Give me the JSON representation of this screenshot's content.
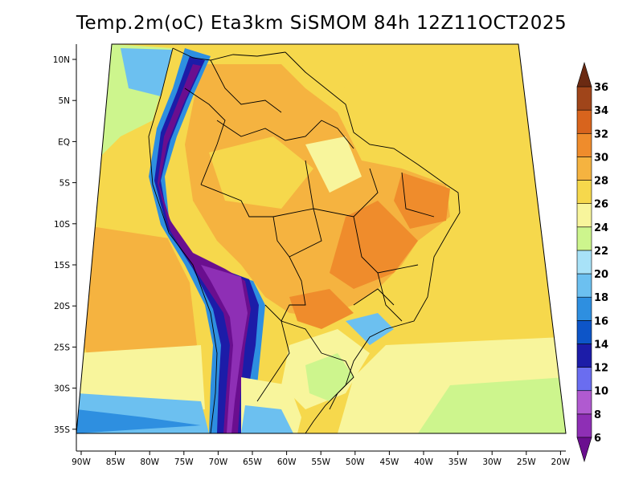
{
  "title": "Temp.2m(oC) Eta3km SiSMOM 84h 12Z11OCT2025",
  "map": {
    "variable": "2m temperature",
    "units": "oC",
    "model": "Eta3km SiSMOM",
    "forecast_hour": "84h",
    "init_time": "12Z11OCT2025",
    "lat_labels": [
      "10N",
      "5N",
      "EQ",
      "5S",
      "10S",
      "15S",
      "20S",
      "25S",
      "30S",
      "35S"
    ],
    "lon_labels": [
      "90W",
      "85W",
      "80W",
      "75W",
      "70W",
      "65W",
      "60W",
      "55W",
      "50W",
      "45W",
      "40W",
      "35W",
      "30W",
      "25W",
      "20W"
    ]
  },
  "colorbar": {
    "labels": [
      "6",
      "8",
      "10",
      "12",
      "14",
      "16",
      "18",
      "20",
      "22",
      "24",
      "26",
      "28",
      "30",
      "32",
      "34",
      "36"
    ],
    "colors": [
      "#6a0e8f",
      "#8e2fb5",
      "#b05ad0",
      "#6a6df0",
      "#1c1ca8",
      "#0d55c8",
      "#2e8fe0",
      "#6cc0f0",
      "#a8e2f8",
      "#cdf58d",
      "#f8f59c",
      "#f6d84c",
      "#f5b340",
      "#ef8c2c",
      "#d8641d",
      "#a0451a",
      "#6b2a12"
    ],
    "under_color": "#6a0e8f",
    "over_color": "#6b2a12"
  }
}
